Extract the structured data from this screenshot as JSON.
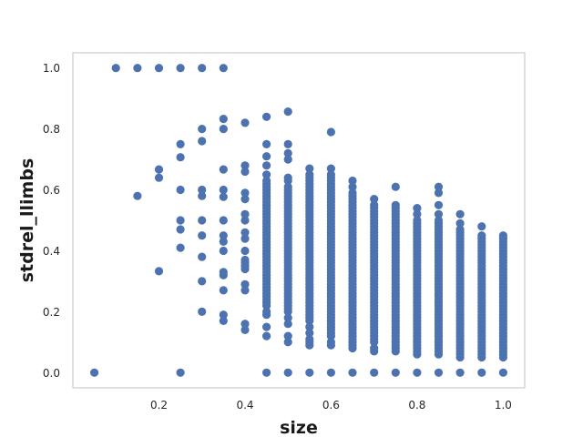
{
  "chart_data": {
    "type": "scatter",
    "xlabel": "size",
    "ylabel": "stdrel_llimbs",
    "xlim": [
      0.0,
      1.05
    ],
    "ylim": [
      -0.05,
      1.05
    ],
    "xticks": [
      0.2,
      0.4,
      0.6,
      0.8,
      1.0
    ],
    "yticks": [
      0.0,
      0.2,
      0.4,
      0.6,
      0.8,
      1.0
    ],
    "xtick_labels": [
      "0.2",
      "0.4",
      "0.6",
      "0.8",
      "1.0"
    ],
    "ytick_labels": [
      "0.0",
      "0.2",
      "0.4",
      "0.6",
      "0.8",
      "1.0"
    ],
    "grid": false,
    "marker_color": "#4c72b0",
    "frame_color": "#cccccc",
    "series": [
      {
        "columns": [
          {
            "x": 0.05,
            "y": [
              0.0
            ]
          },
          {
            "x": 0.1,
            "y": [
              1.0
            ]
          },
          {
            "x": 0.15,
            "y": [
              1.0,
              0.58
            ]
          },
          {
            "x": 0.2,
            "y": [
              1.0,
              0.667,
              0.64,
              0.333
            ]
          },
          {
            "x": 0.25,
            "y": [
              1.0,
              0.75,
              0.707,
              0.6,
              0.5,
              0.47,
              0.41,
              0.0
            ]
          },
          {
            "x": 0.3,
            "y": [
              1.0,
              0.8,
              0.76,
              0.6,
              0.58,
              0.5,
              0.45,
              0.38,
              0.3,
              0.2
            ]
          },
          {
            "x": 0.35,
            "y": [
              1.0,
              0.833,
              0.8,
              0.667,
              0.6,
              0.577,
              0.5,
              0.45,
              0.43,
              0.4,
              0.33,
              0.32,
              0.27,
              0.19,
              0.17
            ]
          },
          {
            "x": 0.4,
            "y": [
              0.82,
              0.68,
              0.66,
              0.59,
              0.57,
              0.52,
              0.5,
              0.46,
              0.44,
              0.4,
              0.37,
              0.36,
              0.35,
              0.34,
              0.29,
              0.27,
              0.16,
              0.14
            ]
          },
          {
            "x": 0.45,
            "y": [
              0.84,
              0.75,
              0.71,
              0.68,
              0.65,
              0.63,
              0.62,
              0.61,
              0.6,
              0.59,
              0.58,
              0.57,
              0.56,
              0.55,
              0.54,
              0.53,
              0.52,
              0.51,
              0.5,
              0.49,
              0.48,
              0.47,
              0.46,
              0.45,
              0.44,
              0.43,
              0.42,
              0.41,
              0.4,
              0.39,
              0.38,
              0.37,
              0.36,
              0.35,
              0.34,
              0.33,
              0.32,
              0.31,
              0.3,
              0.29,
              0.28,
              0.27,
              0.26,
              0.25,
              0.24,
              0.23,
              0.22,
              0.2,
              0.19,
              0.15,
              0.12,
              0.0
            ]
          },
          {
            "x": 0.5,
            "y": [
              0.857,
              0.75,
              0.72,
              0.7,
              0.64,
              0.63,
              0.61,
              0.6,
              0.59,
              0.58,
              0.57,
              0.56,
              0.55,
              0.54,
              0.53,
              0.52,
              0.51,
              0.5,
              0.49,
              0.48,
              0.47,
              0.46,
              0.45,
              0.44,
              0.43,
              0.42,
              0.41,
              0.4,
              0.39,
              0.38,
              0.37,
              0.36,
              0.35,
              0.34,
              0.33,
              0.32,
              0.31,
              0.3,
              0.29,
              0.28,
              0.27,
              0.26,
              0.25,
              0.24,
              0.23,
              0.22,
              0.21,
              0.2,
              0.18,
              0.16,
              0.12,
              0.1,
              0.0
            ]
          },
          {
            "x": 0.55,
            "y": [
              0.67,
              0.65,
              0.64,
              0.63,
              0.62,
              0.61,
              0.6,
              0.59,
              0.58,
              0.57,
              0.56,
              0.55,
              0.54,
              0.53,
              0.52,
              0.51,
              0.5,
              0.49,
              0.48,
              0.47,
              0.46,
              0.45,
              0.44,
              0.43,
              0.42,
              0.41,
              0.4,
              0.39,
              0.38,
              0.37,
              0.36,
              0.35,
              0.34,
              0.33,
              0.32,
              0.31,
              0.3,
              0.29,
              0.28,
              0.27,
              0.26,
              0.25,
              0.24,
              0.23,
              0.22,
              0.21,
              0.2,
              0.19,
              0.18,
              0.17,
              0.15,
              0.13,
              0.11,
              0.1,
              0.09,
              0.0
            ]
          },
          {
            "x": 0.6,
            "y": [
              0.79,
              0.67,
              0.65,
              0.64,
              0.63,
              0.62,
              0.61,
              0.6,
              0.59,
              0.58,
              0.57,
              0.56,
              0.55,
              0.54,
              0.53,
              0.52,
              0.51,
              0.5,
              0.49,
              0.48,
              0.47,
              0.46,
              0.45,
              0.44,
              0.43,
              0.42,
              0.41,
              0.4,
              0.39,
              0.38,
              0.37,
              0.36,
              0.35,
              0.34,
              0.33,
              0.32,
              0.31,
              0.3,
              0.29,
              0.28,
              0.27,
              0.26,
              0.25,
              0.24,
              0.23,
              0.22,
              0.21,
              0.2,
              0.19,
              0.18,
              0.17,
              0.16,
              0.15,
              0.14,
              0.13,
              0.12,
              0.1,
              0.09,
              0.0
            ]
          },
          {
            "x": 0.65,
            "y": [
              0.63,
              0.61,
              0.59,
              0.58,
              0.57,
              0.56,
              0.55,
              0.54,
              0.53,
              0.52,
              0.51,
              0.5,
              0.49,
              0.48,
              0.47,
              0.46,
              0.45,
              0.44,
              0.43,
              0.42,
              0.41,
              0.4,
              0.39,
              0.38,
              0.37,
              0.36,
              0.35,
              0.34,
              0.33,
              0.32,
              0.31,
              0.3,
              0.29,
              0.28,
              0.27,
              0.26,
              0.25,
              0.24,
              0.23,
              0.22,
              0.21,
              0.2,
              0.19,
              0.18,
              0.17,
              0.16,
              0.15,
              0.14,
              0.13,
              0.12,
              0.11,
              0.1,
              0.09,
              0.08,
              0.0
            ]
          },
          {
            "x": 0.7,
            "y": [
              0.57,
              0.55,
              0.54,
              0.53,
              0.52,
              0.51,
              0.5,
              0.49,
              0.48,
              0.47,
              0.46,
              0.45,
              0.44,
              0.43,
              0.42,
              0.41,
              0.4,
              0.39,
              0.38,
              0.37,
              0.36,
              0.35,
              0.34,
              0.33,
              0.32,
              0.31,
              0.3,
              0.29,
              0.28,
              0.27,
              0.26,
              0.25,
              0.24,
              0.23,
              0.22,
              0.21,
              0.2,
              0.19,
              0.18,
              0.17,
              0.16,
              0.15,
              0.14,
              0.13,
              0.12,
              0.11,
              0.1,
              0.08,
              0.07,
              0.0
            ]
          },
          {
            "x": 0.75,
            "y": [
              0.61,
              0.55,
              0.54,
              0.53,
              0.52,
              0.51,
              0.5,
              0.49,
              0.48,
              0.47,
              0.46,
              0.45,
              0.44,
              0.43,
              0.42,
              0.41,
              0.4,
              0.39,
              0.38,
              0.37,
              0.36,
              0.35,
              0.34,
              0.33,
              0.32,
              0.31,
              0.3,
              0.29,
              0.28,
              0.27,
              0.26,
              0.25,
              0.24,
              0.23,
              0.22,
              0.21,
              0.2,
              0.19,
              0.18,
              0.17,
              0.16,
              0.15,
              0.14,
              0.13,
              0.12,
              0.11,
              0.1,
              0.09,
              0.08,
              0.07,
              0.0
            ]
          },
          {
            "x": 0.8,
            "y": [
              0.54,
              0.52,
              0.5,
              0.49,
              0.48,
              0.47,
              0.46,
              0.45,
              0.44,
              0.43,
              0.42,
              0.41,
              0.4,
              0.39,
              0.38,
              0.37,
              0.36,
              0.35,
              0.34,
              0.33,
              0.32,
              0.31,
              0.3,
              0.29,
              0.28,
              0.27,
              0.26,
              0.25,
              0.24,
              0.23,
              0.22,
              0.21,
              0.2,
              0.19,
              0.18,
              0.17,
              0.16,
              0.15,
              0.14,
              0.13,
              0.12,
              0.11,
              0.1,
              0.09,
              0.08,
              0.07,
              0.06,
              0.0
            ]
          },
          {
            "x": 0.85,
            "y": [
              0.61,
              0.59,
              0.55,
              0.52,
              0.5,
              0.49,
              0.48,
              0.47,
              0.46,
              0.45,
              0.44,
              0.43,
              0.42,
              0.41,
              0.4,
              0.39,
              0.38,
              0.37,
              0.36,
              0.35,
              0.34,
              0.33,
              0.32,
              0.31,
              0.3,
              0.29,
              0.28,
              0.27,
              0.26,
              0.25,
              0.24,
              0.23,
              0.22,
              0.21,
              0.2,
              0.19,
              0.18,
              0.17,
              0.16,
              0.15,
              0.14,
              0.13,
              0.12,
              0.11,
              0.1,
              0.09,
              0.08,
              0.07,
              0.06,
              0.0
            ]
          },
          {
            "x": 0.9,
            "y": [
              0.52,
              0.49,
              0.47,
              0.46,
              0.45,
              0.44,
              0.43,
              0.42,
              0.41,
              0.4,
              0.39,
              0.38,
              0.37,
              0.36,
              0.35,
              0.34,
              0.33,
              0.32,
              0.31,
              0.3,
              0.29,
              0.28,
              0.27,
              0.26,
              0.25,
              0.24,
              0.23,
              0.22,
              0.21,
              0.2,
              0.19,
              0.18,
              0.17,
              0.16,
              0.15,
              0.14,
              0.13,
              0.12,
              0.11,
              0.1,
              0.09,
              0.08,
              0.07,
              0.06,
              0.05,
              0.0
            ]
          },
          {
            "x": 0.95,
            "y": [
              0.48,
              0.45,
              0.44,
              0.43,
              0.42,
              0.41,
              0.4,
              0.39,
              0.38,
              0.37,
              0.36,
              0.35,
              0.34,
              0.33,
              0.32,
              0.31,
              0.3,
              0.29,
              0.28,
              0.27,
              0.26,
              0.25,
              0.24,
              0.23,
              0.22,
              0.21,
              0.2,
              0.19,
              0.18,
              0.17,
              0.16,
              0.15,
              0.14,
              0.13,
              0.12,
              0.11,
              0.1,
              0.09,
              0.08,
              0.07,
              0.06,
              0.05,
              0.0
            ]
          },
          {
            "x": 1.0,
            "y": [
              0.45,
              0.44,
              0.43,
              0.42,
              0.41,
              0.4,
              0.39,
              0.38,
              0.37,
              0.36,
              0.35,
              0.34,
              0.33,
              0.32,
              0.31,
              0.3,
              0.29,
              0.28,
              0.27,
              0.26,
              0.25,
              0.24,
              0.23,
              0.22,
              0.21,
              0.2,
              0.19,
              0.18,
              0.17,
              0.16,
              0.15,
              0.14,
              0.13,
              0.12,
              0.11,
              0.1,
              0.09,
              0.08,
              0.07,
              0.06,
              0.05,
              0.0
            ]
          }
        ]
      }
    ]
  }
}
